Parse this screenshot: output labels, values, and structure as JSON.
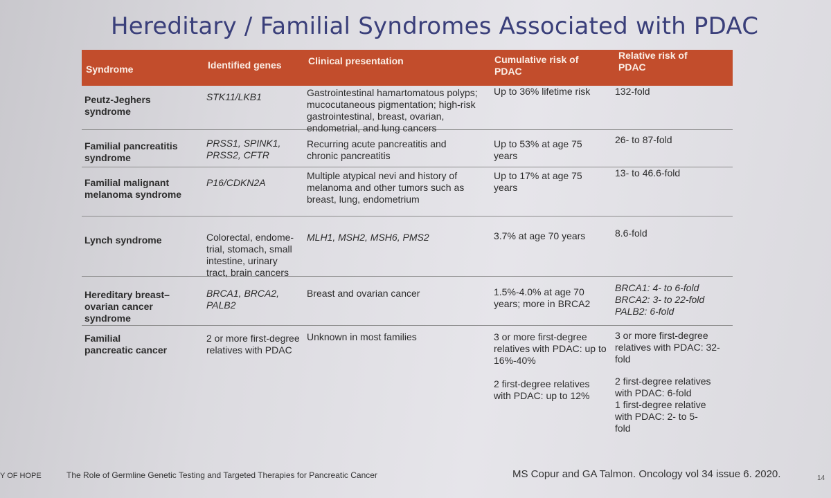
{
  "title": "Hereditary / Familial Syndromes Associated with PDAC",
  "table": {
    "headers": [
      "Syndrome",
      "Identified genes",
      "Clinical presentation",
      "Cumulative risk of PDAC",
      "Relative risk of PDAC"
    ],
    "rows": [
      {
        "syndrome": "Peutz-Jeghers syndrome",
        "genes": "STK11/LKB1",
        "clinical": "Gastrointestinal hamartomatous polyps; mucocutaneous pigmentation; high-risk gastrointestinal, breast, ovarian, endometrial, and lung cancers",
        "cumulative": "Up to 36% lifetime risk",
        "relative": "132-fold"
      },
      {
        "syndrome": "Familial pancreatitis syndrome",
        "genes": "PRSS1, SPINK1, PRSS2, CFTR",
        "clinical": "Recurring acute pancreatitis and chronic pancreatitis",
        "cumulative": "Up to 53% at age 75 years",
        "relative": "26- to 87-fold"
      },
      {
        "syndrome": "Familial malignant melanoma syndrome",
        "genes": "P16/CDKN2A",
        "clinical": "Multiple atypical nevi and history of melanoma and other tumors such as breast, lung, endometrium",
        "cumulative": "Up to 17% at age 75 years",
        "relative": "13- to 46.6-fold"
      },
      {
        "syndrome": "Lynch syndrome",
        "genes": "Colorectal, endome-trial, stomach, small intestine, urinary tract, brain cancers",
        "clinical": "MLH1, MSH2, MSH6, PMS2",
        "cumulative": "3.7% at age 70 years",
        "relative": "8.6-fold"
      },
      {
        "syndrome": "Hereditary breast–ovarian cancer syndrome",
        "genes": "BRCA1, BRCA2, PALB2",
        "clinical": "Breast and ovarian cancer",
        "cumulative": "1.5%-4.0% at age 70 years; more in BRCA2",
        "relative_lines": [
          "BRCA1: 4- to 6-fold",
          "BRCA2: 3- to 22-fold",
          "PALB2: 6-fold"
        ]
      },
      {
        "syndrome": "Familial pancreatic cancer",
        "genes": "2 or more first-degree relatives with PDAC",
        "clinical": "Unknown in most families",
        "cumulative_a": "3 or more first-degree relatives with PDAC: up to 16%-40%",
        "cumulative_b": "2 first-degree relatives with PDAC: up to 12%",
        "relative_a": "3 or more first-degree relatives with PDAC: 32-fold",
        "relative_b": "2 first-degree relatives with PDAC: 6-fold",
        "relative_c": "1 first-degree relative with PDAC: 2- to 5-fold"
      }
    ]
  },
  "footer": {
    "left": "Y OF HOPE",
    "middle": "The Role of Germline Genetic Testing and Targeted Therapies for Pancreatic Cancer",
    "citation": "MS Copur and GA Talmon. Oncology vol 34 issue 6. 2020.",
    "page": "14"
  }
}
